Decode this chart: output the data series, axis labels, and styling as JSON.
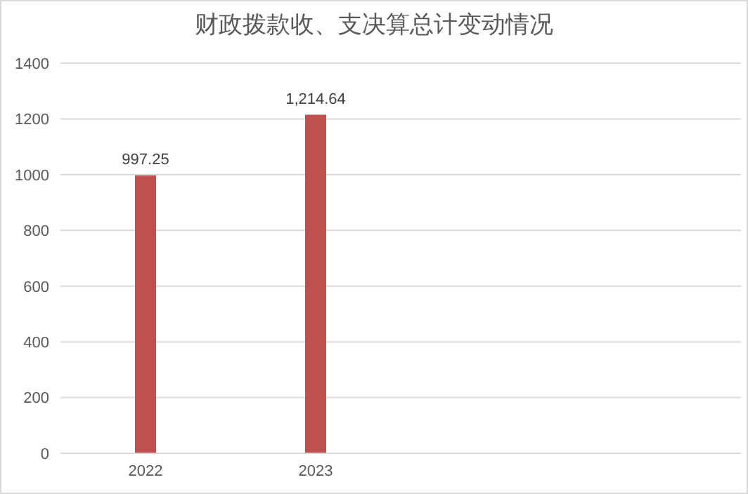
{
  "chart_data": {
    "type": "bar",
    "title": "财政拨款收、支决算总计变动情况",
    "categories": [
      "2022",
      "2023",
      null,
      null
    ],
    "values": [
      997.25,
      1214.64,
      null,
      null
    ],
    "value_labels": [
      "997.25",
      "1,214.64",
      null,
      null
    ],
    "color": "#c0504d",
    "ylim": [
      0,
      1400
    ],
    "yticks": [
      0,
      200,
      400,
      600,
      800,
      1000,
      1200,
      1400
    ],
    "grid": "y"
  }
}
